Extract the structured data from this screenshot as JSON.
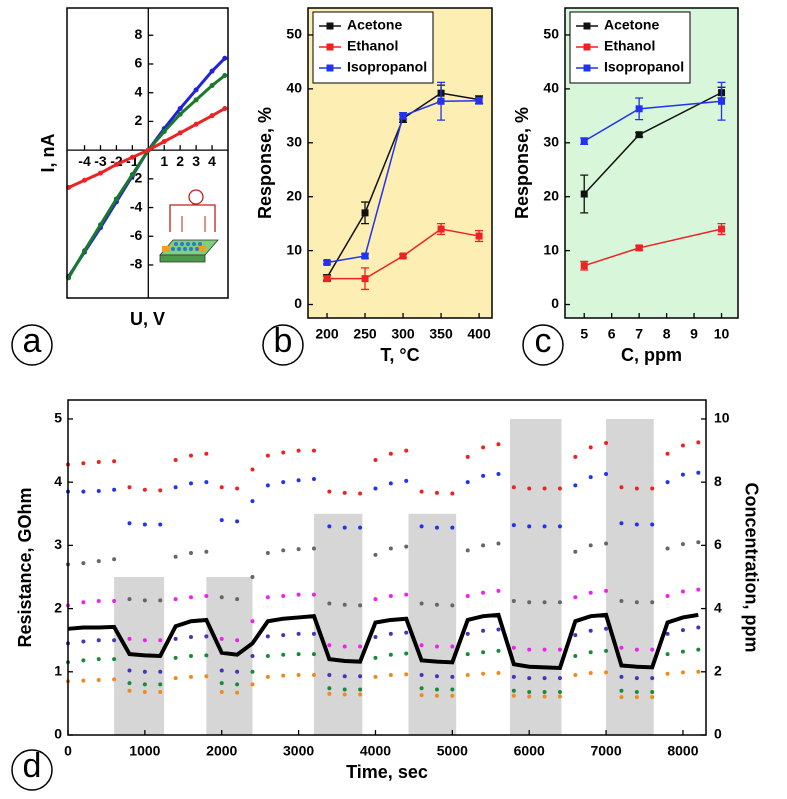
{
  "chart_data": [
    {
      "type": "line",
      "panel_label": "a",
      "xlabel": "U, V",
      "ylabel": "I, nA",
      "axes_at_origin": true,
      "xlim": [
        -5.1,
        5
      ],
      "ylim": [
        -10.3,
        9.9
      ],
      "xticks": [
        -4,
        -3,
        -2,
        -1,
        1,
        2,
        3,
        4
      ],
      "yticks": [
        -8,
        -6,
        -4,
        -2,
        2,
        4,
        6,
        8
      ],
      "x": [
        -5,
        -4,
        -3,
        -2,
        -1,
        0,
        1,
        2,
        3,
        4,
        4.8
      ],
      "series": [
        {
          "color": "#2222dd",
          "values": [
            -8.8,
            -7.1,
            -5.4,
            -3.6,
            -1.8,
            0,
            1.5,
            2.9,
            4.2,
            5.5,
            6.4
          ]
        },
        {
          "color": "#1a7a2a",
          "values": [
            -8.9,
            -7.0,
            -5.2,
            -3.4,
            -1.7,
            0,
            1.3,
            2.5,
            3.5,
            4.5,
            5.2
          ]
        },
        {
          "color": "#ee2222",
          "values": [
            -2.6,
            -2.1,
            -1.6,
            -1.0,
            -0.5,
            0,
            0.6,
            1.2,
            1.8,
            2.4,
            2.9
          ]
        }
      ]
    },
    {
      "type": "line",
      "panel_label": "b",
      "xlabel": "T, °C",
      "ylabel": "Response, %",
      "background": "#fdeeb4",
      "legend": "upper left",
      "xlim": [
        175,
        417
      ],
      "ylim": [
        -2.5,
        55
      ],
      "xticks": [
        200,
        250,
        300,
        350,
        400
      ],
      "yticks": [
        0,
        10,
        20,
        30,
        40,
        50
      ],
      "x": [
        200,
        250,
        300,
        350,
        400
      ],
      "series": [
        {
          "name": "Acetone",
          "color": "#111111",
          "values": [
            5,
            17,
            34.5,
            39.2,
            38
          ],
          "errors": [
            0.5,
            2,
            0.7,
            1.5,
            0.7
          ]
        },
        {
          "name": "Ethanol",
          "color": "#ee2222",
          "values": [
            4.8,
            4.8,
            9,
            14,
            12.7
          ],
          "errors": [
            0.5,
            2,
            0.3,
            1,
            1
          ]
        },
        {
          "name": "Isopropanol",
          "color": "#2233ee",
          "values": [
            7.8,
            9,
            35,
            37.7,
            37.8
          ],
          "errors": [
            0.3,
            0.4,
            0.6,
            3.5,
            0.6
          ]
        }
      ]
    },
    {
      "type": "line",
      "panel_label": "c",
      "xlabel": "C, ppm",
      "ylabel": "Response, %",
      "background": "#d8f6da",
      "legend": "upper left",
      "xlim": [
        4.3,
        10.6
      ],
      "ylim": [
        -2.5,
        55
      ],
      "xticks": [
        5,
        6,
        7,
        8,
        9,
        10
      ],
      "yticks": [
        0,
        10,
        20,
        30,
        40,
        50
      ],
      "x": [
        5,
        7,
        10
      ],
      "series": [
        {
          "name": "Acetone",
          "color": "#111111",
          "values": [
            20.5,
            31.5,
            39.3
          ],
          "errors": [
            3.5,
            0.4,
            1.0
          ]
        },
        {
          "name": "Ethanol",
          "color": "#ee2222",
          "values": [
            7.2,
            10.5,
            14
          ],
          "errors": [
            0.8,
            0.4,
            1.0
          ]
        },
        {
          "name": "Isopropanol",
          "color": "#2233ee",
          "values": [
            30.3,
            36.3,
            37.7
          ],
          "errors": [
            0.6,
            2,
            3.5
          ]
        }
      ]
    },
    {
      "type": "scatter",
      "panel_label": "d",
      "xlabel": "Time, sec",
      "ylabel": "Resistance, GOhm",
      "y2label": "Concentration, ppm",
      "xlim": [
        0,
        8300
      ],
      "ylim": [
        0,
        5.3
      ],
      "y2lim": [
        0,
        10.6
      ],
      "xticks": [
        0,
        1000,
        2000,
        3000,
        4000,
        5000,
        6000,
        7000,
        8000
      ],
      "yticks": [
        0,
        1,
        2,
        3,
        4,
        5
      ],
      "y2ticks": [
        0,
        2,
        4,
        6,
        8,
        10
      ],
      "exposure": {
        "axis": "y2",
        "color": "#d6d6d6",
        "start": [
          600,
          1800,
          3200,
          4430,
          5750,
          7000
        ],
        "end": [
          1250,
          2400,
          3830,
          5050,
          6420,
          7620
        ],
        "values": [
          5,
          5,
          7,
          7,
          10,
          10
        ]
      },
      "x": [
        0,
        200,
        400,
        600,
        800,
        1000,
        1200,
        1400,
        1600,
        1800,
        2000,
        2200,
        2400,
        2600,
        2800,
        3000,
        3200,
        3400,
        3600,
        3800,
        4000,
        4200,
        4400,
        4600,
        4800,
        5000,
        5200,
        5400,
        5600,
        5800,
        6000,
        6200,
        6400,
        6600,
        6800,
        7000,
        7200,
        7400,
        7600,
        7800,
        8000,
        8200
      ],
      "series": [
        {
          "color": "#ee2222",
          "values": [
            4.28,
            4.3,
            4.32,
            4.33,
            3.92,
            3.88,
            3.87,
            4.35,
            4.42,
            4.45,
            3.92,
            3.9,
            4.2,
            4.42,
            4.47,
            4.5,
            4.5,
            3.85,
            3.83,
            3.82,
            4.35,
            4.45,
            4.5,
            3.85,
            3.83,
            3.82,
            4.4,
            4.55,
            4.6,
            3.92,
            3.9,
            3.9,
            3.9,
            4.4,
            4.55,
            4.62,
            3.92,
            3.9,
            3.9,
            4.45,
            4.58,
            4.63
          ]
        },
        {
          "color": "#2233ee",
          "values": [
            3.85,
            3.85,
            3.86,
            3.88,
            3.35,
            3.33,
            3.33,
            3.92,
            3.98,
            4.0,
            3.4,
            3.38,
            3.7,
            3.95,
            4.0,
            4.03,
            4.05,
            3.3,
            3.28,
            3.28,
            3.9,
            3.98,
            4.02,
            3.3,
            3.28,
            3.28,
            4.0,
            4.1,
            4.13,
            3.32,
            3.3,
            3.3,
            3.3,
            3.95,
            4.08,
            4.13,
            3.35,
            3.33,
            3.33,
            4.0,
            4.12,
            4.15
          ]
        },
        {
          "color": "#666666",
          "values": [
            2.7,
            2.72,
            2.75,
            2.78,
            2.15,
            2.13,
            2.13,
            2.82,
            2.88,
            2.9,
            2.18,
            2.15,
            2.5,
            2.88,
            2.92,
            2.94,
            2.95,
            2.08,
            2.06,
            2.05,
            2.85,
            2.95,
            2.98,
            2.08,
            2.06,
            2.05,
            2.92,
            3.0,
            3.03,
            2.12,
            2.1,
            2.1,
            2.1,
            2.9,
            3.0,
            3.03,
            2.12,
            2.1,
            2.1,
            2.95,
            3.02,
            3.05
          ]
        },
        {
          "color": "#ee22ee",
          "values": [
            2.05,
            2.1,
            2.12,
            2.12,
            1.52,
            1.5,
            1.5,
            2.15,
            2.18,
            2.2,
            1.52,
            1.5,
            1.8,
            2.18,
            2.2,
            2.22,
            2.22,
            1.42,
            1.4,
            1.4,
            2.15,
            2.2,
            2.22,
            1.42,
            1.4,
            1.4,
            2.2,
            2.25,
            2.28,
            1.38,
            1.35,
            1.35,
            1.35,
            2.18,
            2.25,
            2.28,
            1.38,
            1.35,
            1.35,
            2.2,
            2.27,
            2.3
          ]
        },
        {
          "color": "#4433bb",
          "values": [
            1.45,
            1.48,
            1.5,
            1.5,
            1.02,
            1.0,
            1.0,
            1.52,
            1.55,
            1.56,
            1.02,
            1.0,
            1.25,
            1.56,
            1.58,
            1.6,
            1.6,
            0.95,
            0.93,
            0.93,
            1.55,
            1.6,
            1.62,
            0.95,
            0.93,
            0.92,
            1.6,
            1.65,
            1.67,
            0.92,
            0.9,
            0.9,
            0.9,
            1.58,
            1.65,
            1.68,
            0.92,
            0.9,
            0.9,
            1.6,
            1.66,
            1.7
          ]
        },
        {
          "color": "#1a8a3a",
          "values": [
            1.15,
            1.18,
            1.2,
            1.2,
            0.82,
            0.8,
            0.8,
            1.22,
            1.25,
            1.26,
            0.82,
            0.8,
            1.0,
            1.25,
            1.27,
            1.28,
            1.28,
            0.74,
            0.72,
            0.72,
            1.22,
            1.27,
            1.29,
            0.74,
            0.72,
            0.72,
            1.28,
            1.31,
            1.33,
            0.7,
            0.68,
            0.68,
            0.68,
            1.25,
            1.31,
            1.33,
            0.7,
            0.68,
            0.68,
            1.28,
            1.32,
            1.35
          ]
        },
        {
          "color": "#f08a20",
          "values": [
            0.85,
            0.86,
            0.87,
            0.88,
            0.7,
            0.68,
            0.68,
            0.9,
            0.92,
            0.93,
            0.68,
            0.67,
            0.8,
            0.92,
            0.94,
            0.95,
            0.95,
            0.65,
            0.64,
            0.64,
            0.92,
            0.95,
            0.96,
            0.63,
            0.62,
            0.62,
            0.95,
            0.97,
            0.98,
            0.62,
            0.61,
            0.61,
            0.61,
            0.95,
            0.98,
            0.99,
            0.6,
            0.6,
            0.6,
            0.97,
            0.99,
            1.0
          ]
        },
        {
          "color": "#000000",
          "style": "line",
          "values": [
            1.68,
            1.7,
            1.7,
            1.71,
            1.28,
            1.26,
            1.25,
            1.72,
            1.8,
            1.82,
            1.3,
            1.27,
            1.45,
            1.8,
            1.84,
            1.86,
            1.88,
            1.2,
            1.17,
            1.16,
            1.78,
            1.82,
            1.84,
            1.18,
            1.16,
            1.15,
            1.82,
            1.88,
            1.9,
            1.12,
            1.08,
            1.07,
            1.06,
            1.8,
            1.88,
            1.9,
            1.1,
            1.08,
            1.07,
            1.78,
            1.86,
            1.9
          ]
        }
      ]
    }
  ]
}
